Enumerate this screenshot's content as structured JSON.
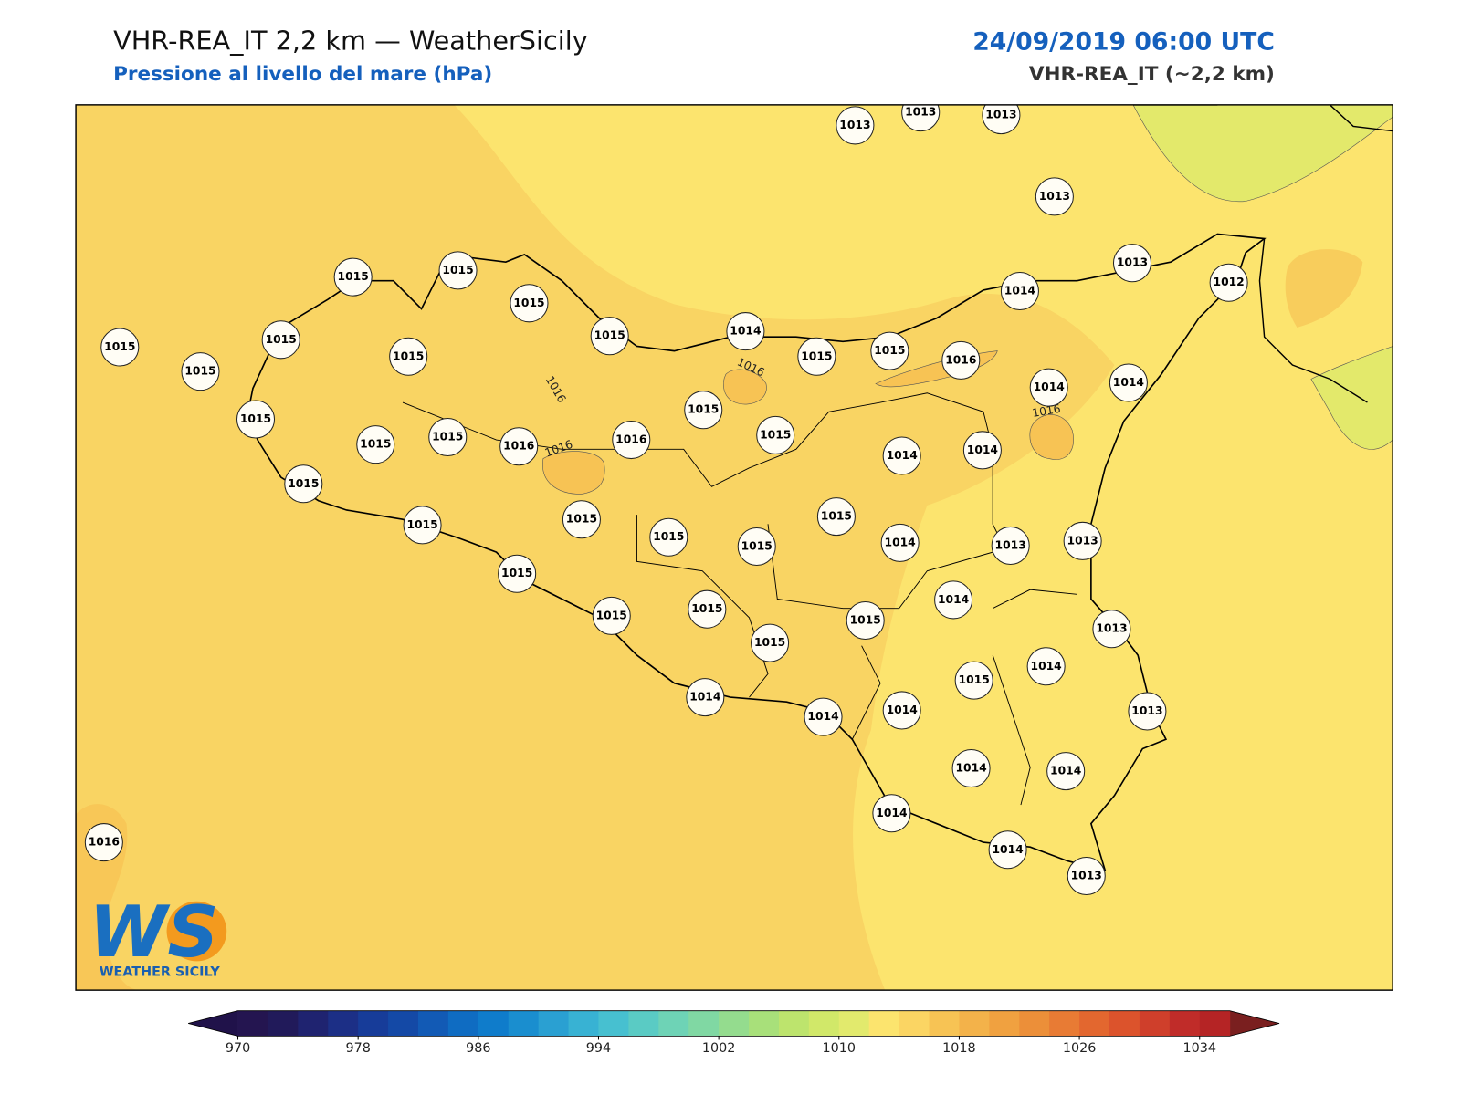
{
  "header": {
    "title": "VHR-REA_IT 2,2 km — WeatherSicily",
    "subtitle": "Pressione al livello del mare (hPa)",
    "date": "24/09/2019 06:00 UTC",
    "model": "VHR-REA_IT (~2,2 km)"
  },
  "stations": [
    1013,
    1013,
    1013,
    1013,
    1013,
    1012,
    1014,
    1015,
    1015,
    1015,
    1015,
    1014,
    1015,
    1015,
    1016,
    1014,
    1014,
    1015,
    1015,
    1015,
    1015,
    1015,
    1015,
    1015,
    1016,
    1016,
    1015,
    1015,
    1014,
    1014,
    1015,
    1015,
    1015,
    1015,
    1015,
    1015,
    1014,
    1013,
    1013,
    1015,
    1015,
    1015,
    1015,
    1015,
    1014,
    1013,
    1014,
    1015,
    1014,
    1014,
    1014,
    1013,
    1014,
    1014,
    1014,
    1014,
    1013,
    1016
  ],
  "contour_labels": [
    "1016",
    "1016",
    "1016",
    "1016"
  ],
  "logo": {
    "mark": "WS",
    "text": "WEATHER SICILY"
  },
  "colorbar": {
    "range": [
      970,
      1036
    ],
    "ticks": [
      970,
      978,
      986,
      994,
      1002,
      1010,
      1018,
      1026,
      1034
    ],
    "under_color": "#20124a",
    "over_color": "#7a1f1f",
    "colors": [
      "#241550",
      "#211a5a",
      "#1f2370",
      "#1c2f86",
      "#173c99",
      "#1449a6",
      "#125ab5",
      "#0f6cc2",
      "#0f7ccb",
      "#1a8ecf",
      "#2aa0d2",
      "#38b2d3",
      "#47c0d0",
      "#5acbc4",
      "#6ed3b6",
      "#80d8a3",
      "#94dc8e",
      "#a8e07a",
      "#bde46d",
      "#d1e869",
      "#e2ea6d",
      "#fce46e",
      "#fbd563",
      "#f7c354",
      "#f3b24a",
      "#f0a140",
      "#ec8f39",
      "#e87b34",
      "#e3672f",
      "#dc532c",
      "#cf3f2b",
      "#c02c29",
      "#b52425"
    ]
  }
}
